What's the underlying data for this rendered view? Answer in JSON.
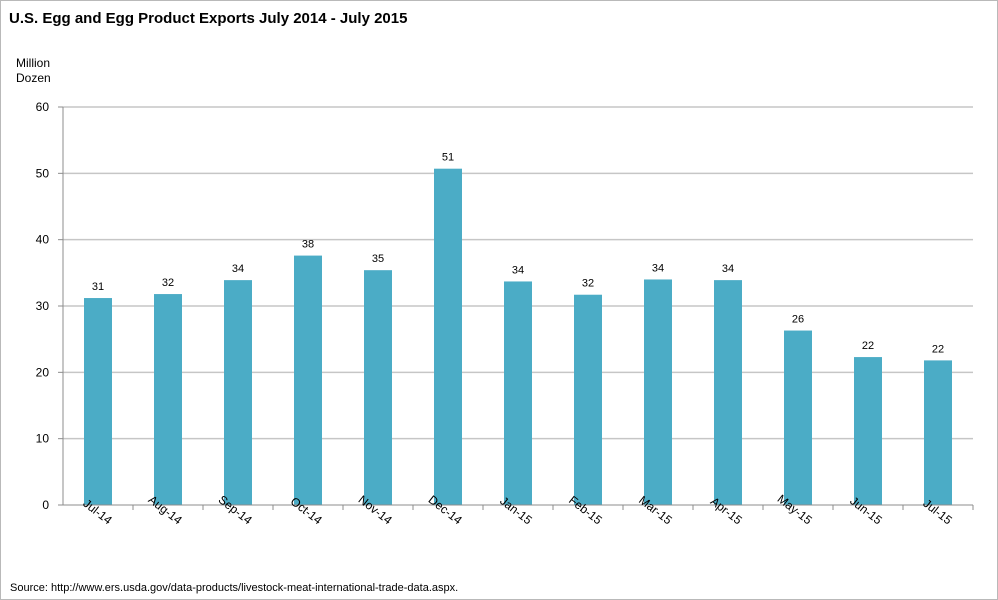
{
  "chart_data": {
    "type": "bar",
    "title": "U.S. Egg and Egg Product Exports July 2014 - July 2015",
    "ylabel_lines": [
      "Million",
      "Dozen"
    ],
    "xlabel": "",
    "categories": [
      "Jul-14",
      "Aug-14",
      "Sep-14",
      "Oct-14",
      "Nov-14",
      "Dec-14",
      "Jan-15",
      "Feb-15",
      "Mar-15",
      "Apr-15",
      "May-15",
      "Jun-15",
      "Jul-15"
    ],
    "values": [
      31.2,
      31.8,
      33.9,
      37.6,
      35.4,
      50.7,
      33.7,
      31.7,
      34.0,
      33.9,
      26.3,
      22.3,
      21.8
    ],
    "data_labels": [
      "31",
      "32",
      "34",
      "38",
      "35",
      "51",
      "34",
      "32",
      "34",
      "34",
      "26",
      "22",
      "22"
    ],
    "ylim": [
      0,
      60
    ],
    "yticks": [
      0,
      10,
      20,
      30,
      40,
      50,
      60
    ],
    "grid": true,
    "bar_color": "#4bacc6",
    "source": "Source: http://www.ers.usda.gov/data-products/livestock-meat-international-trade-data.aspx."
  }
}
